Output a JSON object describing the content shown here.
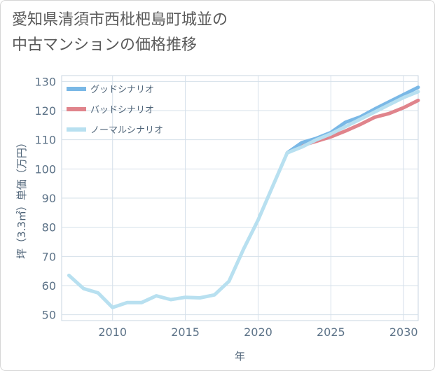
{
  "title_lines": [
    "愛知県清須市西枇杷島町城並の",
    "中古マンションの価格推移"
  ],
  "chart_data": {
    "type": "line",
    "title": "愛知県清須市西枇杷島町城並の中古マンションの価格推移",
    "xlabel": "年",
    "ylabel": "坪（3.3㎡）単価（万円）",
    "xlim": [
      2006.5,
      2031
    ],
    "ylim": [
      48,
      132
    ],
    "xticks": [
      2010,
      2015,
      2020,
      2025,
      2030
    ],
    "yticks": [
      50,
      60,
      70,
      80,
      90,
      100,
      110,
      120,
      130
    ],
    "legend_position": "top-left",
    "series": [
      {
        "name": "グッドシナリオ",
        "color": "#7ab8e6",
        "x": [
          2022,
          2023,
          2024,
          2025,
          2026,
          2027,
          2028,
          2029,
          2030,
          2031
        ],
        "y": [
          105.5,
          109,
          110.5,
          112.5,
          116,
          117.8,
          120.5,
          123,
          125.5,
          128
        ]
      },
      {
        "name": "バッドシナリオ",
        "color": "#e0848c",
        "x": [
          2022,
          2023,
          2024,
          2025,
          2026,
          2027,
          2028,
          2029,
          2030,
          2031
        ],
        "y": [
          105.5,
          108,
          109.5,
          111,
          113,
          115.2,
          117.7,
          119,
          121,
          123.5
        ]
      },
      {
        "name": "ノーマルシナリオ",
        "color": "#b8e0f0",
        "x": [
          2007,
          2008,
          2009,
          2010,
          2011,
          2012,
          2013,
          2014,
          2015,
          2016,
          2017,
          2018,
          2019,
          2020,
          2021,
          2022,
          2023,
          2024,
          2025,
          2026,
          2027,
          2028,
          2029,
          2030,
          2031
        ],
        "y": [
          63.5,
          59,
          57.5,
          52.5,
          54.2,
          54.2,
          56.5,
          55.2,
          56,
          55.8,
          56.8,
          61.5,
          72.5,
          82.5,
          94,
          105.5,
          107.5,
          110,
          112,
          114.5,
          117,
          119.5,
          122,
          124.5,
          126.5
        ]
      }
    ]
  }
}
